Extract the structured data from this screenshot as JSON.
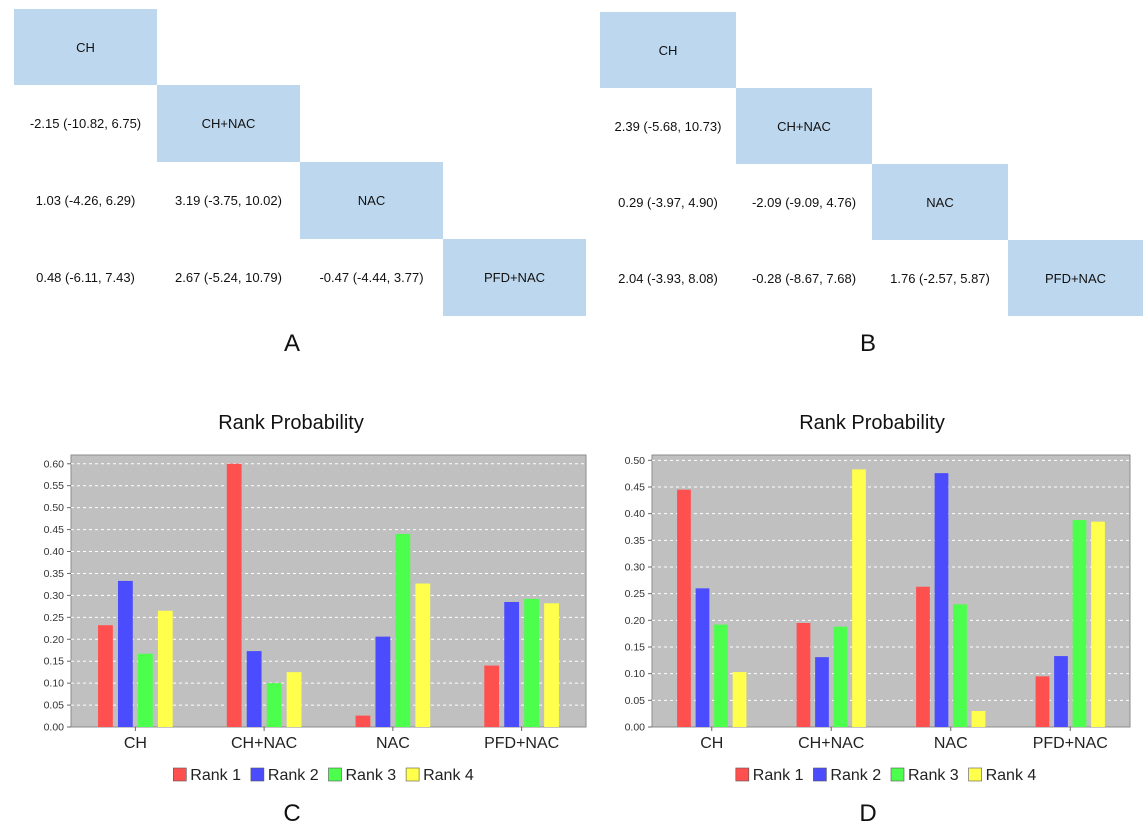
{
  "panels": {
    "A": {
      "letter": "A",
      "diagonal": [
        "CH",
        "CH+NAC",
        "NAC",
        "PFD+NAC"
      ],
      "rows": [
        [],
        [
          "-2.15 (-10.82, 6.75)"
        ],
        [
          "1.03 (-4.26, 6.29)",
          "3.19 (-3.75, 10.02)"
        ],
        [
          "0.48 (-6.11, 7.43)",
          "2.67 (-5.24, 10.79)",
          "-0.47 (-4.44, 3.77)"
        ]
      ]
    },
    "B": {
      "letter": "B",
      "diagonal": [
        "CH",
        "CH+NAC",
        "NAC",
        "PFD+NAC"
      ],
      "rows": [
        [],
        [
          "2.39 (-5.68, 10.73)"
        ],
        [
          "0.29 (-3.97, 4.90)",
          "-2.09 (-9.09, 4.76)"
        ],
        [
          "2.04 (-3.93, 8.08)",
          "-0.28 (-8.67, 7.68)",
          "1.76 (-2.57, 5.87)"
        ]
      ]
    }
  },
  "chart_data": [
    {
      "panel": "C",
      "type": "bar",
      "title": "Rank Probability",
      "categories": [
        "CH",
        "CH+NAC",
        "NAC",
        "PFD+NAC"
      ],
      "series": [
        {
          "name": "Rank 1",
          "color": "#ff5050",
          "values": [
            0.232,
            0.6,
            0.026,
            0.14
          ]
        },
        {
          "name": "Rank 2",
          "color": "#4c4cff",
          "values": [
            0.333,
            0.173,
            0.206,
            0.285
          ]
        },
        {
          "name": "Rank 3",
          "color": "#4cff4c",
          "values": [
            0.167,
            0.1,
            0.44,
            0.292
          ]
        },
        {
          "name": "Rank 4",
          "color": "#ffff4c",
          "values": [
            0.265,
            0.125,
            0.327,
            0.282
          ]
        }
      ],
      "ylim": [
        0,
        0.62
      ],
      "yticks": [
        "0.00",
        "0.05",
        "0.10",
        "0.15",
        "0.20",
        "0.25",
        "0.30",
        "0.35",
        "0.40",
        "0.45",
        "0.50",
        "0.55",
        "0.60"
      ],
      "grid": true,
      "legend": "bottom"
    },
    {
      "panel": "D",
      "type": "bar",
      "title": "Rank Probability",
      "categories": [
        "CH",
        "CH+NAC",
        "NAC",
        "PFD+NAC"
      ],
      "series": [
        {
          "name": "Rank 1",
          "color": "#ff5050",
          "values": [
            0.445,
            0.195,
            0.263,
            0.095
          ]
        },
        {
          "name": "Rank 2",
          "color": "#4c4cff",
          "values": [
            0.26,
            0.131,
            0.476,
            0.133
          ]
        },
        {
          "name": "Rank 3",
          "color": "#4cff4c",
          "values": [
            0.192,
            0.188,
            0.23,
            0.388
          ]
        },
        {
          "name": "Rank 4",
          "color": "#ffff4c",
          "values": [
            0.103,
            0.483,
            0.03,
            0.385
          ]
        }
      ],
      "ylim": [
        0,
        0.51
      ],
      "yticks": [
        "0.00",
        "0.05",
        "0.10",
        "0.15",
        "0.20",
        "0.25",
        "0.30",
        "0.35",
        "0.40",
        "0.45",
        "0.50"
      ],
      "grid": true,
      "legend": "bottom"
    }
  ]
}
